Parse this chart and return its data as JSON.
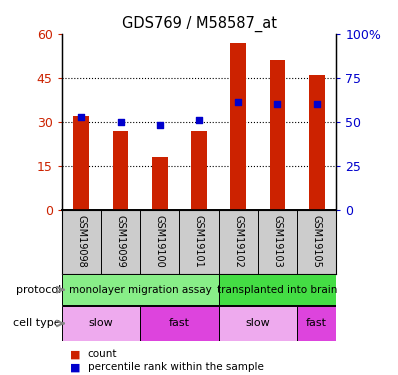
{
  "title": "GDS769 / M58587_at",
  "samples": [
    "GSM19098",
    "GSM19099",
    "GSM19100",
    "GSM19101",
    "GSM19102",
    "GSM19103",
    "GSM19105"
  ],
  "count_values": [
    32,
    27,
    18,
    27,
    57,
    51,
    46
  ],
  "percentile_values": [
    53,
    50,
    48,
    51,
    61,
    60,
    60
  ],
  "ylim_left": [
    0,
    60
  ],
  "ylim_right": [
    0,
    100
  ],
  "yticks_left": [
    0,
    15,
    30,
    45,
    60
  ],
  "yticks_right": [
    0,
    25,
    50,
    75,
    100
  ],
  "ytick_labels_left": [
    "0",
    "15",
    "30",
    "45",
    "60"
  ],
  "ytick_labels_right": [
    "0",
    "25",
    "50",
    "75",
    "100%"
  ],
  "bar_color": "#cc2200",
  "dot_color": "#0000cc",
  "protocol_groups": [
    {
      "label": "monolayer migration assay",
      "start": 0,
      "end": 4,
      "color": "#88ee88"
    },
    {
      "label": "transplanted into brain",
      "start": 4,
      "end": 7,
      "color": "#44dd44"
    }
  ],
  "cell_type_groups": [
    {
      "label": "slow",
      "start": 0,
      "end": 2,
      "color": "#eeaaee"
    },
    {
      "label": "fast",
      "start": 2,
      "end": 4,
      "color": "#dd44dd"
    },
    {
      "label": "slow",
      "start": 4,
      "end": 6,
      "color": "#eeaaee"
    },
    {
      "label": "fast",
      "start": 6,
      "end": 7,
      "color": "#dd44dd"
    }
  ],
  "legend_items": [
    {
      "label": "count",
      "color": "#cc2200"
    },
    {
      "label": "percentile rank within the sample",
      "color": "#0000cc"
    }
  ],
  "background_color": "#ffffff",
  "plot_bg_color": "#ffffff",
  "axis_label_color_left": "#cc2200",
  "axis_label_color_right": "#0000cc",
  "xlabels_bg": "#cccccc",
  "grid_yticks": [
    15,
    30,
    45
  ]
}
